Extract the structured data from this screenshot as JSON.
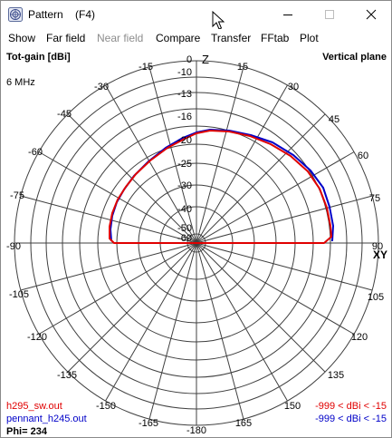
{
  "window": {
    "title": "Pattern    (F4)",
    "icon": "antenna-pattern-app-icon",
    "controls": [
      "minimize-icon",
      "maximize-icon",
      "close-icon"
    ]
  },
  "menu": [
    {
      "label": "Show",
      "enabled": true
    },
    {
      "label": "Far field",
      "enabled": true
    },
    {
      "label": "Near field",
      "enabled": false
    },
    {
      "label": "Compare",
      "enabled": true
    },
    {
      "label": "Transfer",
      "enabled": true
    },
    {
      "label": "FFtab",
      "enabled": true
    },
    {
      "label": "Plot",
      "enabled": true
    }
  ],
  "plot": {
    "quantity": "Tot-gain [dBi]",
    "plane": "Vertical plane",
    "frequency": "6 MHz",
    "z_label": "Z",
    "xy_label": "XY",
    "angle_labels": {
      "a0": "0",
      "a15": "15",
      "a30": "30",
      "a45": "45",
      "a60": "60",
      "a75": "75",
      "a90": "90",
      "a105": "105",
      "a120": "120",
      "a135": "135",
      "a150": "150",
      "a165": "165",
      "m15": "-15",
      "m30": "-30",
      "m45": "-45",
      "m60": "-60",
      "m75": "-75",
      "m90": "-90",
      "m105": "-105",
      "m120": "-120",
      "m135": "-135",
      "m150": "-150",
      "m165": "-165",
      "m180": "-180"
    },
    "radial_labels": [
      "-10",
      "-13",
      "-16",
      "-20",
      "-25",
      "-30",
      "-40",
      "-50",
      "-60"
    ],
    "traces": [
      {
        "file": "h295_sw.out",
        "range": "-999 < dBi < -15",
        "color": "#e00000"
      },
      {
        "file": "pennant_h245.out",
        "range": "-999 < dBi < -15",
        "color": "#0000c8"
      }
    ],
    "phi": "Phi= 234",
    "grid_color": "#404040"
  }
}
